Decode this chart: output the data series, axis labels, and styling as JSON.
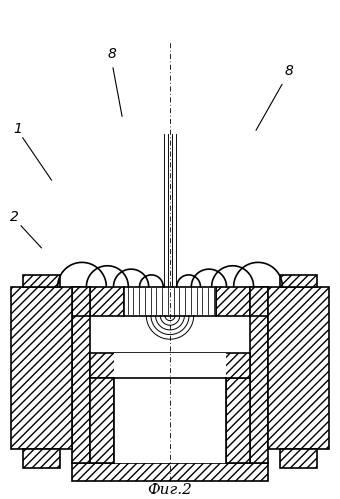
{
  "title": "Фиг.2",
  "bg_color": "#ffffff",
  "line_color": "#000000",
  "fig_width": 3.4,
  "fig_height": 4.99,
  "dpi": 100
}
